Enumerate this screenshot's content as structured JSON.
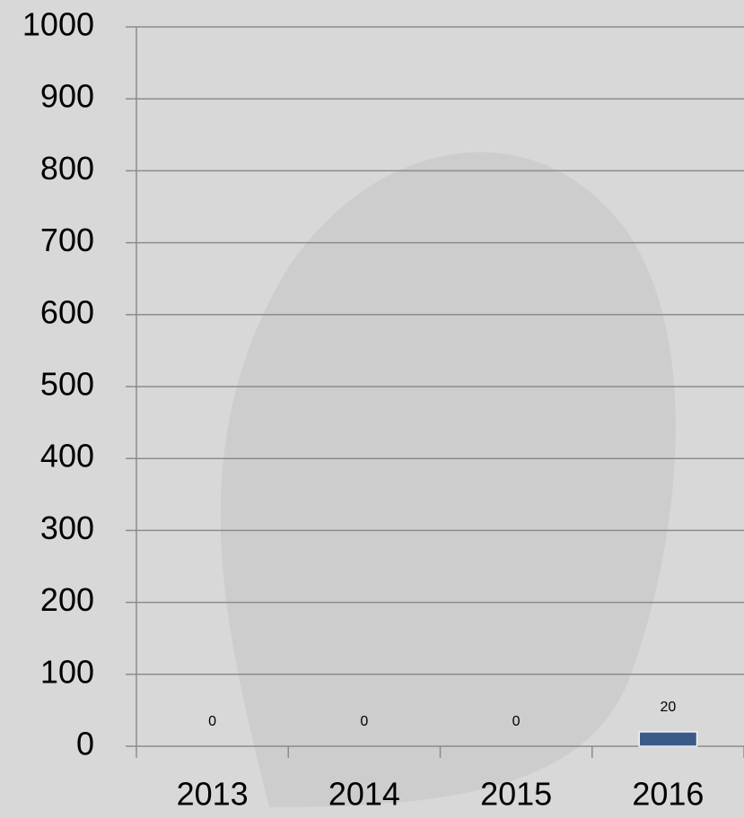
{
  "chart_data": {
    "type": "bar",
    "categories": [
      "2013",
      "2014",
      "2015",
      "2016"
    ],
    "values": [
      0,
      0,
      0,
      20
    ],
    "color": "#3b5b86",
    "ylim": [
      0,
      1000
    ],
    "yticks": [
      0,
      100,
      200,
      300,
      400,
      500,
      600,
      700,
      800,
      900,
      1000
    ],
    "grid": true
  }
}
